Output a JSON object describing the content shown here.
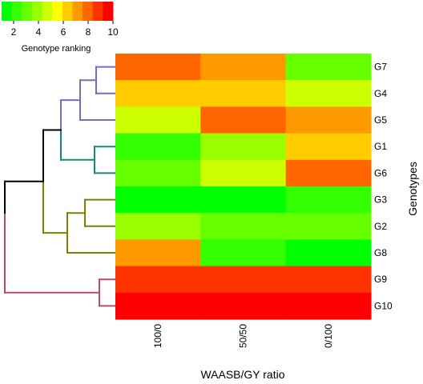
{
  "chart_data": {
    "type": "heatmap",
    "title": "",
    "xlabel": "WAASB/GY ratio",
    "ylabel": "Genotypes",
    "x_categories": [
      "100/0",
      "50/50",
      "0/100"
    ],
    "y_categories": [
      "G7",
      "G4",
      "G5",
      "G1",
      "G6",
      "G3",
      "G2",
      "G8",
      "G9",
      "G10"
    ],
    "values": [
      [
        8,
        7,
        3
      ],
      [
        6,
        6,
        5
      ],
      [
        5,
        8,
        7
      ],
      [
        2,
        4,
        6
      ],
      [
        3,
        5,
        8
      ],
      [
        1,
        1,
        2
      ],
      [
        4,
        3,
        3
      ],
      [
        7,
        2,
        1
      ],
      [
        9,
        9,
        9
      ],
      [
        10,
        10,
        10
      ]
    ],
    "color_scale": {
      "title": "Genotype ranking",
      "min": 1,
      "max": 10,
      "ticks": [
        2,
        4,
        6,
        8,
        10
      ],
      "colors": [
        "#00ff00",
        "#33ff00",
        "#66ff00",
        "#99ff00",
        "#ccff00",
        "#ffff00",
        "#ffcc00",
        "#ff9900",
        "#ff6600",
        "#ff3300",
        "#ff0000"
      ],
      "position": "top-left"
    },
    "dendrogram": {
      "clusters": [
        {
          "members": [
            "G7",
            "G4",
            "G5"
          ],
          "color": "#7b68c8"
        },
        {
          "members": [
            "G1",
            "G6"
          ],
          "color": "#16877a"
        },
        {
          "members": [
            "G3",
            "G2",
            "G8"
          ],
          "color": "#808000"
        },
        {
          "members": [
            "G9",
            "G10"
          ],
          "color": "#c04870"
        }
      ],
      "root_color": "#000000"
    }
  }
}
